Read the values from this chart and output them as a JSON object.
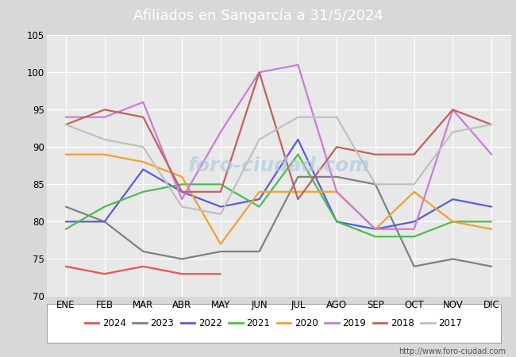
{
  "title": "Afiliados en Sangarcía a 31/5/2024",
  "title_bgcolor": "#4da6d8",
  "title_color": "white",
  "ylim": [
    70,
    105
  ],
  "months": [
    "ENE",
    "FEB",
    "MAR",
    "ABR",
    "MAY",
    "JUN",
    "JUL",
    "AGO",
    "SEP",
    "OCT",
    "NOV",
    "DIC"
  ],
  "url": "http://www.foro-ciudad.com",
  "series": {
    "2024": {
      "color": "#e8524a",
      "data": [
        74,
        73,
        74,
        73,
        73,
        null,
        null,
        null,
        null,
        null,
        null,
        null
      ]
    },
    "2023": {
      "color": "#808080",
      "data": [
        82,
        80,
        76,
        75,
        76,
        76,
        86,
        86,
        85,
        74,
        75,
        74
      ]
    },
    "2022": {
      "color": "#5b5bdb",
      "data": [
        80,
        80,
        87,
        84,
        82,
        83,
        91,
        80,
        79,
        80,
        83,
        82
      ]
    },
    "2021": {
      "color": "#4dbd4d",
      "data": [
        79,
        82,
        84,
        85,
        85,
        82,
        89,
        80,
        78,
        78,
        80,
        80
      ]
    },
    "2020": {
      "color": "#f0a030",
      "data": [
        89,
        89,
        88,
        86,
        77,
        84,
        84,
        84,
        79,
        84,
        80,
        79
      ]
    },
    "2019": {
      "color": "#c87dd4",
      "data": [
        94,
        94,
        96,
        83,
        92,
        100,
        101,
        84,
        79,
        79,
        95,
        89
      ]
    },
    "2018": {
      "color": "#c06060",
      "data": [
        93,
        95,
        94,
        84,
        84,
        100,
        83,
        90,
        89,
        89,
        95,
        93
      ]
    },
    "2017": {
      "color": "#c0c0c0",
      "data": [
        93,
        91,
        90,
        82,
        81,
        91,
        94,
        94,
        85,
        85,
        92,
        93
      ]
    }
  },
  "legend_order": [
    "2024",
    "2023",
    "2022",
    "2021",
    "2020",
    "2019",
    "2018",
    "2017"
  ],
  "fig_bg": "#d8d8d8",
  "plot_bg": "#e8e8e8",
  "grid_color": "white",
  "watermark_text": "foro-ciudad.com",
  "watermark_color": "#aec8dc",
  "title_fontsize": 13,
  "tick_fontsize": 8.5,
  "legend_fontsize": 8.5,
  "linewidth": 1.6
}
